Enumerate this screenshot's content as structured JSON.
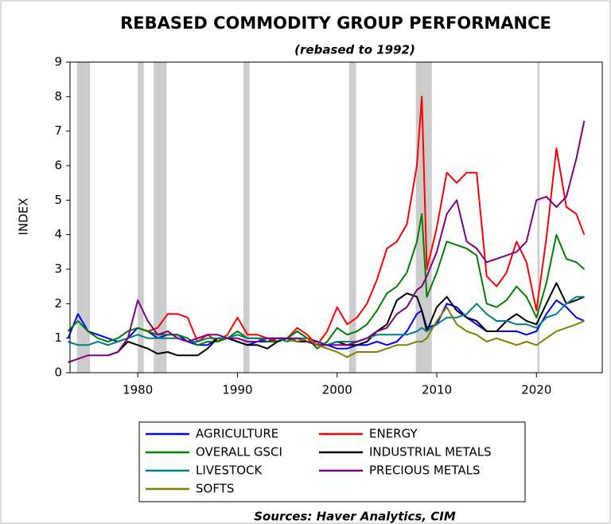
{
  "chart_data": {
    "type": "line",
    "title": "REBASED COMMODITY GROUP PERFORMANCE",
    "subtitle": "(rebased to 1992)",
    "y_label": "INDEX",
    "source": "Sources:  Haver Analytics, CIM",
    "x": [
      1973,
      1974,
      1975,
      1976,
      1977,
      1978,
      1979,
      1980,
      1981,
      1982,
      1983,
      1984,
      1985,
      1986,
      1987,
      1988,
      1989,
      1990,
      1991,
      1992,
      1993,
      1994,
      1995,
      1996,
      1997,
      1998,
      1999,
      2000,
      2001,
      2002,
      2003,
      2004,
      2005,
      2006,
      2007,
      2008,
      2008.5,
      2009,
      2010,
      2011,
      2012,
      2013,
      2014,
      2015,
      2016,
      2017,
      2018,
      2019,
      2020,
      2021,
      2022,
      2023,
      2024,
      2024.8
    ],
    "series": [
      {
        "name": "AGRICULTURE",
        "color": "#0000ff",
        "values": [
          1.0,
          1.7,
          1.2,
          1.1,
          1.0,
          0.9,
          1.0,
          1.3,
          1.2,
          1.0,
          1.1,
          1.1,
          0.9,
          0.8,
          0.8,
          1.0,
          1.0,
          0.9,
          0.8,
          0.9,
          0.9,
          1.0,
          1.0,
          1.2,
          1.0,
          0.9,
          0.8,
          0.7,
          0.7,
          0.8,
          0.8,
          0.9,
          0.8,
          0.9,
          1.2,
          1.7,
          1.8,
          1.3,
          1.4,
          2.0,
          1.9,
          1.6,
          1.4,
          1.2,
          1.2,
          1.2,
          1.2,
          1.1,
          1.2,
          1.7,
          2.1,
          1.9,
          1.6,
          1.5
        ]
      },
      {
        "name": "ENERGY",
        "color": "#ff0000",
        "values": [
          null,
          null,
          null,
          null,
          null,
          null,
          null,
          null,
          1.2,
          1.3,
          1.7,
          1.7,
          1.6,
          0.9,
          1.1,
          0.9,
          1.1,
          1.6,
          1.1,
          1.1,
          1.0,
          0.9,
          1.0,
          1.3,
          1.1,
          0.8,
          1.2,
          1.9,
          1.4,
          1.6,
          2.0,
          2.7,
          3.6,
          3.8,
          4.3,
          6.0,
          8.0,
          3.0,
          4.2,
          5.8,
          5.5,
          5.8,
          5.8,
          2.8,
          2.5,
          2.9,
          3.8,
          3.2,
          1.8,
          3.9,
          6.5,
          4.8,
          4.6,
          4.0
        ]
      },
      {
        "name": "OVERALL GSCI",
        "color": "#008000",
        "values": [
          1.2,
          1.5,
          1.2,
          1.0,
          0.9,
          1.0,
          1.2,
          1.3,
          1.2,
          1.1,
          1.1,
          1.1,
          1.0,
          0.8,
          0.9,
          0.9,
          1.0,
          1.2,
          1.0,
          1.0,
          0.9,
          0.9,
          1.0,
          1.2,
          1.0,
          0.7,
          0.9,
          1.3,
          1.1,
          1.2,
          1.4,
          1.8,
          2.3,
          2.5,
          2.9,
          3.8,
          4.6,
          2.2,
          2.9,
          3.8,
          3.7,
          3.6,
          3.4,
          2.0,
          1.9,
          2.1,
          2.5,
          2.2,
          1.6,
          2.6,
          4.0,
          3.3,
          3.2,
          3.0
        ]
      },
      {
        "name": "INDUSTRIAL METALS",
        "color": "#000000",
        "values": [
          null,
          null,
          null,
          null,
          0.5,
          0.6,
          0.9,
          0.8,
          0.7,
          0.55,
          0.6,
          0.5,
          0.5,
          0.5,
          0.7,
          1.0,
          1.0,
          0.9,
          0.8,
          0.8,
          0.7,
          0.9,
          1.0,
          0.9,
          0.9,
          0.8,
          0.8,
          0.9,
          0.8,
          0.8,
          0.9,
          1.2,
          1.4,
          2.1,
          2.3,
          2.2,
          1.8,
          1.2,
          1.9,
          2.2,
          1.8,
          1.6,
          1.5,
          1.2,
          1.2,
          1.5,
          1.7,
          1.5,
          1.4,
          2.0,
          2.6,
          2.0,
          2.1,
          2.2
        ]
      },
      {
        "name": "LIVESTOCK",
        "color": "#008080",
        "values": [
          0.9,
          0.8,
          0.8,
          0.9,
          0.8,
          0.9,
          1.0,
          1.1,
          1.0,
          1.0,
          1.0,
          1.0,
          0.9,
          0.9,
          1.0,
          1.0,
          1.0,
          1.1,
          1.0,
          1.0,
          1.0,
          1.0,
          0.9,
          1.0,
          1.0,
          0.8,
          0.8,
          0.9,
          0.9,
          0.9,
          1.0,
          1.1,
          1.1,
          1.1,
          1.1,
          1.2,
          1.3,
          1.2,
          1.4,
          1.6,
          1.6,
          1.7,
          2.0,
          1.7,
          1.5,
          1.5,
          1.4,
          1.4,
          1.3,
          1.6,
          1.7,
          2.0,
          2.2,
          2.2
        ]
      },
      {
        "name": "PRECIOUS METALS",
        "color": "#800080",
        "values": [
          0.3,
          0.4,
          0.5,
          0.5,
          0.5,
          0.6,
          1.0,
          2.1,
          1.5,
          1.1,
          1.2,
          1.0,
          0.9,
          1.0,
          1.1,
          1.1,
          1.0,
          1.0,
          0.9,
          0.9,
          1.0,
          1.0,
          1.0,
          1.0,
          0.9,
          0.8,
          0.8,
          0.8,
          0.8,
          0.9,
          1.0,
          1.2,
          1.3,
          1.7,
          1.9,
          2.4,
          2.5,
          2.8,
          3.5,
          4.6,
          5.0,
          3.8,
          3.6,
          3.2,
          3.3,
          3.4,
          3.5,
          3.8,
          5.0,
          5.1,
          4.8,
          5.1,
          6.2,
          7.3
        ]
      },
      {
        "name": "SOFTS",
        "color": "#808000",
        "values": [
          null,
          null,
          null,
          null,
          null,
          null,
          null,
          null,
          null,
          null,
          null,
          null,
          null,
          null,
          null,
          null,
          null,
          null,
          null,
          null,
          null,
          null,
          0.95,
          0.9,
          1.0,
          0.8,
          0.7,
          0.6,
          0.45,
          0.6,
          0.6,
          0.6,
          0.7,
          0.8,
          0.8,
          0.9,
          0.9,
          1.0,
          1.5,
          1.9,
          1.4,
          1.2,
          1.1,
          0.9,
          1.0,
          0.9,
          0.8,
          0.9,
          0.8,
          1.0,
          1.2,
          1.3,
          1.4,
          1.5
        ]
      }
    ],
    "shaded_periods": [
      [
        1973.9,
        1975.2
      ],
      [
        1980.0,
        1980.6
      ],
      [
        1981.6,
        1982.9
      ],
      [
        1990.6,
        1991.2
      ],
      [
        2001.2,
        2001.9
      ],
      [
        2007.9,
        2009.5
      ],
      [
        2020.1,
        2020.3
      ]
    ],
    "shade_color": "#cccccc",
    "xlim": [
      1973.2,
      2026.6
    ],
    "xticks": [
      1980,
      1990,
      2000,
      2010,
      2020
    ],
    "ylim": [
      0,
      9
    ],
    "yticks": [
      0,
      1,
      2,
      3,
      4,
      5,
      6,
      7,
      8,
      9
    ],
    "grid": false,
    "legend": "bottom"
  }
}
